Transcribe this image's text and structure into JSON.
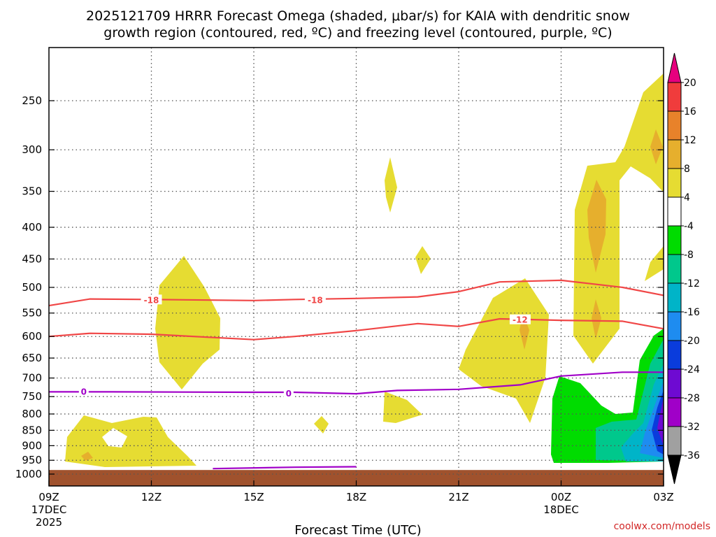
{
  "chart_data": {
    "type": "heatmap",
    "title_line1": "2025121709 HRRR Forecast Omega (shaded, μbar/s) for KAIA with dendritic snow",
    "title_line2": "growth region (contoured, red, ºC) and freezing level (contoured, purple, ºC)",
    "xlabel": "Forecast Time (UTC)",
    "ylabel": "",
    "x_range_hours": [
      0,
      30
    ],
    "y_range_hpa": [
      1050,
      200
    ],
    "x_ticks": [
      {
        "hour": 0,
        "lines": [
          "09Z",
          "17DEC",
          "2025"
        ]
      },
      {
        "hour": 5,
        "lines": [
          "12Z"
        ]
      },
      {
        "hour": 10,
        "lines": [
          "15Z"
        ]
      },
      {
        "hour": 15,
        "lines": [
          "18Z"
        ]
      },
      {
        "hour": 20,
        "lines": [
          "21Z"
        ]
      },
      {
        "hour": 25,
        "lines": [
          "00Z",
          "18DEC"
        ]
      },
      {
        "hour": 30,
        "lines": [
          "03Z"
        ]
      }
    ],
    "y_ticks": [
      {
        "p": 250,
        "label": "250"
      },
      {
        "p": 300,
        "label": "300"
      },
      {
        "p": 350,
        "label": "350"
      },
      {
        "p": 400,
        "label": "400"
      },
      {
        "p": 450,
        "label": "450"
      },
      {
        "p": 500,
        "label": "500"
      },
      {
        "p": 550,
        "label": "550"
      },
      {
        "p": 600,
        "label": "600"
      },
      {
        "p": 650,
        "label": "650"
      },
      {
        "p": 700,
        "label": "700"
      },
      {
        "p": 750,
        "label": "750"
      },
      {
        "p": 800,
        "label": "800"
      },
      {
        "p": 850,
        "label": "850"
      },
      {
        "p": 900,
        "label": "900"
      },
      {
        "p": 950,
        "label": "950"
      },
      {
        "p": 1000,
        "label": "1000"
      }
    ],
    "colorbar": {
      "labels": [
        "20",
        "16",
        "12",
        "8",
        "4",
        "-4",
        "-8",
        "-12",
        "-16",
        "-20",
        "-24",
        "-28",
        "-32",
        "-36"
      ],
      "colors": [
        "#e6007e",
        "#f03c3c",
        "#e8822a",
        "#e6af2d",
        "#e6dc32",
        "#ffffff",
        "#00dc00",
        "#00c88c",
        "#00b4c8",
        "#1e8cf0",
        "#0a3cdc",
        "#6e0ad2",
        "#a000c8",
        "#a0a0a0",
        "#000000"
      ]
    },
    "series": [
      {
        "name": "-18 C isotherm",
        "color": "#f04646",
        "label": "-18",
        "points": [
          [
            0,
            535
          ],
          [
            2,
            522
          ],
          [
            5,
            523
          ],
          [
            10,
            525
          ],
          [
            12,
            523
          ],
          [
            15,
            521
          ],
          [
            18,
            518
          ],
          [
            20,
            508
          ],
          [
            22,
            490
          ],
          [
            25,
            487
          ],
          [
            28,
            500
          ],
          [
            30,
            515
          ]
        ],
        "label_at": [
          [
            5,
            523
          ],
          [
            13,
            523
          ]
        ]
      },
      {
        "name": "-12 C isotherm",
        "color": "#f04646",
        "label": "-12",
        "points": [
          [
            0,
            600
          ],
          [
            2,
            593
          ],
          [
            5,
            595
          ],
          [
            10,
            607
          ],
          [
            12,
            600
          ],
          [
            15,
            587
          ],
          [
            18,
            572
          ],
          [
            20,
            578
          ],
          [
            22,
            562
          ],
          [
            25,
            565
          ],
          [
            28,
            567
          ],
          [
            30,
            583
          ]
        ],
        "label_at": [
          [
            23,
            563
          ]
        ]
      },
      {
        "name": "0 C freezing level",
        "color": "#a000c8",
        "label": "0",
        "points": [
          [
            0,
            737
          ],
          [
            3,
            737
          ],
          [
            10,
            738
          ],
          [
            12,
            738
          ],
          [
            15,
            742
          ],
          [
            17,
            733
          ],
          [
            20,
            730
          ],
          [
            23,
            718
          ],
          [
            25,
            695
          ],
          [
            28,
            685
          ],
          [
            30,
            685
          ]
        ],
        "label_at": [
          [
            1.7,
            735
          ],
          [
            11.7,
            740
          ]
        ]
      },
      {
        "name": "0 C freezing level (surface)",
        "color": "#a000c8",
        "label": "",
        "points": [
          [
            8,
            980
          ],
          [
            12,
            975
          ],
          [
            15,
            973
          ]
        ],
        "label_at": []
      }
    ],
    "terrain": {
      "color": "#a0522d",
      "surface_p": 985
    },
    "credit": "coolwx.com/models"
  }
}
